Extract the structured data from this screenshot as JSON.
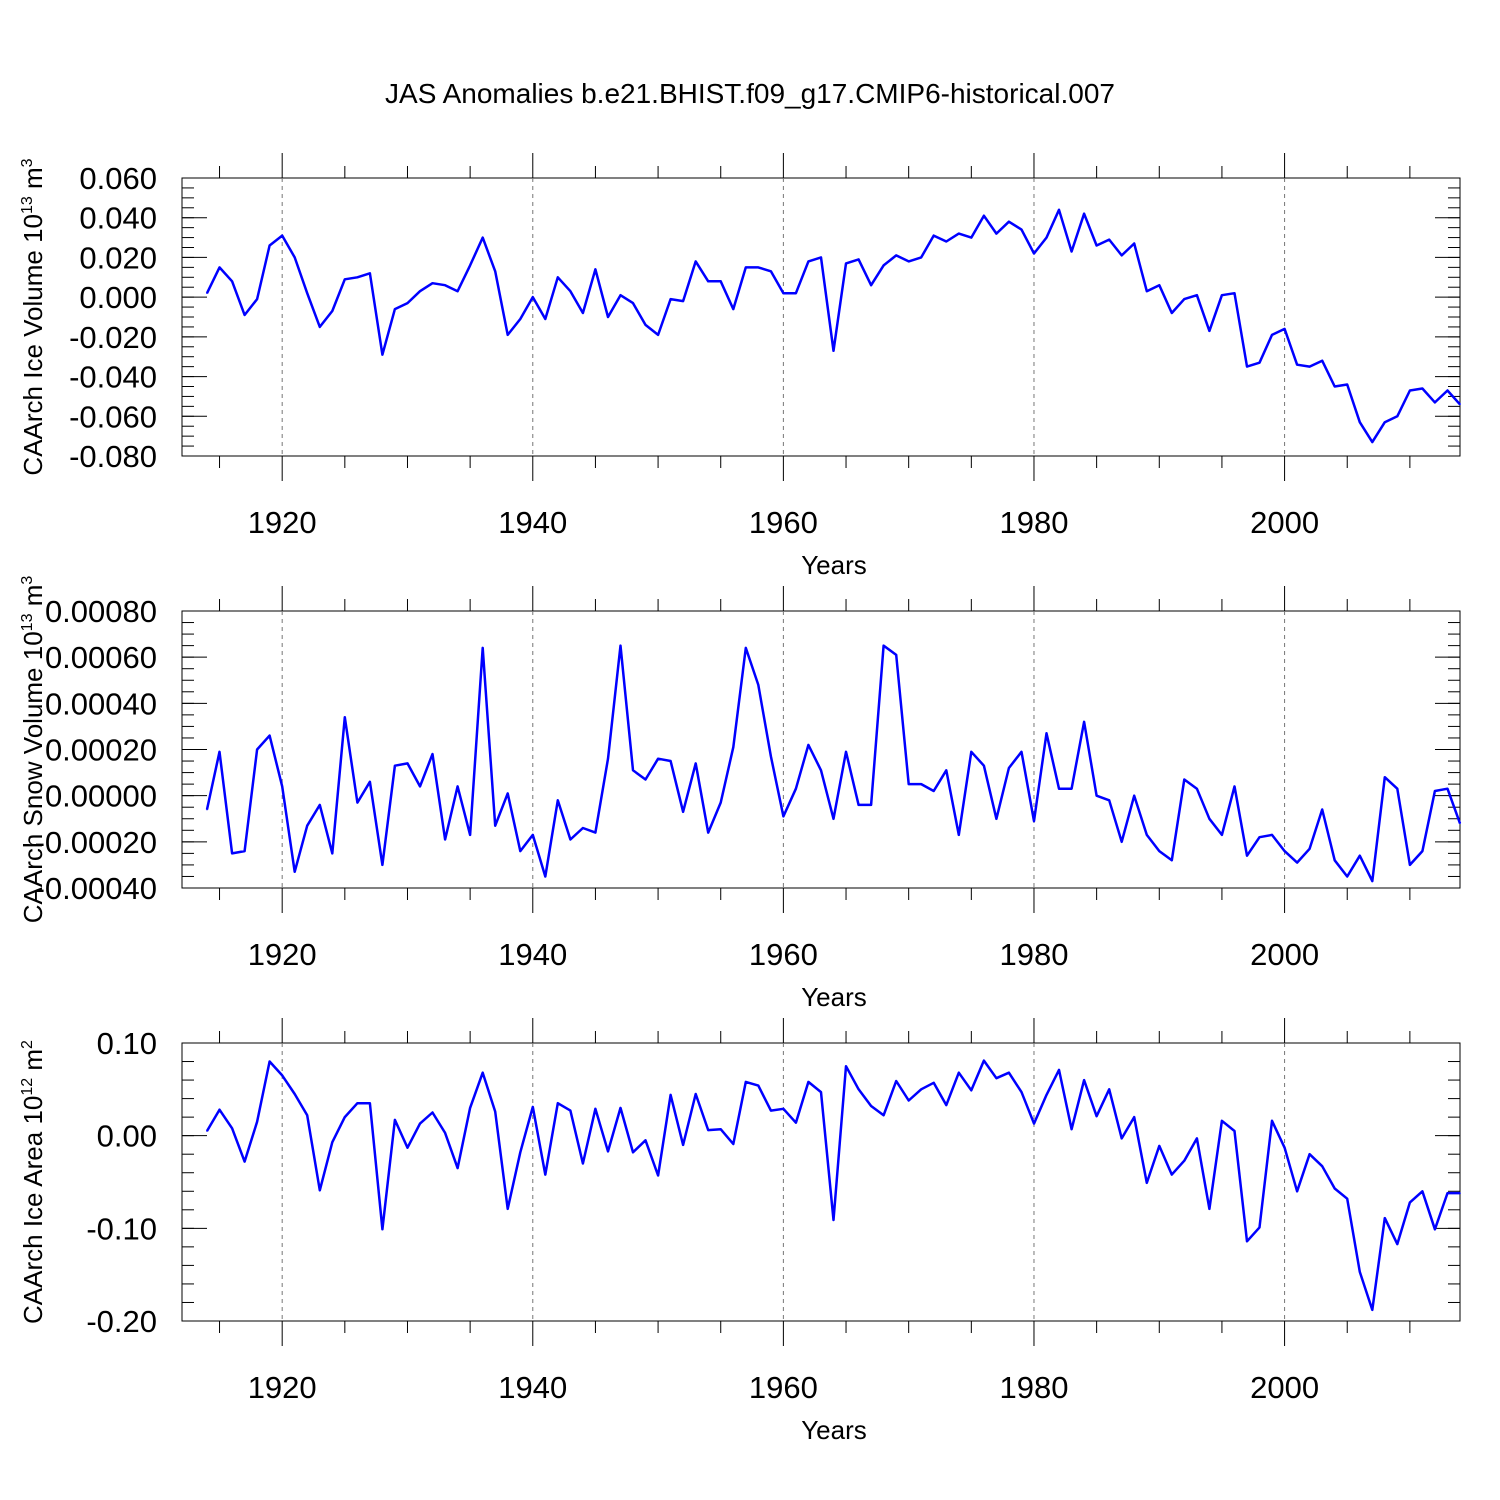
{
  "title": "JAS Anomalies b.e21.BHIST.f09_g17.CMIP6-historical.007",
  "chart_data": [
    {
      "type": "line",
      "xlabel": "Years",
      "ylabel": "CAArch Ice Volume 10",
      "ylabel_exp": "13",
      "ylabel_unit": " m",
      "ylabel_unit_exp": "3",
      "xlim": [
        1914,
        2014
      ],
      "ylim": [
        -0.08,
        0.06
      ],
      "yticks": [
        -0.08,
        -0.06,
        -0.04,
        -0.02,
        0.0,
        0.02,
        0.04,
        0.06
      ],
      "ytick_labels": [
        "-0.080",
        "-0.060",
        "-0.040",
        "-0.020",
        "0.000",
        "0.020",
        "0.040",
        "0.060"
      ],
      "yminor": 0.005,
      "xticks": [
        1920,
        1940,
        1960,
        1980,
        2000
      ],
      "xtick_labels": [
        "1920",
        "1940",
        "1960",
        "1980",
        "2000"
      ],
      "x_start": 1914,
      "color": "#0000ff",
      "values": [
        0.002,
        0.015,
        0.008,
        -0.009,
        -0.001,
        0.026,
        0.031,
        0.02,
        0.002,
        -0.015,
        -0.007,
        0.009,
        0.01,
        0.012,
        -0.029,
        -0.006,
        -0.003,
        0.003,
        0.007,
        0.006,
        0.003,
        0.016,
        0.03,
        0.013,
        -0.019,
        -0.011,
        0.0,
        -0.011,
        0.01,
        0.003,
        -0.008,
        0.014,
        -0.01,
        0.001,
        -0.003,
        -0.014,
        -0.019,
        -0.001,
        -0.002,
        0.018,
        0.008,
        0.008,
        -0.006,
        0.015,
        0.015,
        0.013,
        0.002,
        0.002,
        0.018,
        0.02,
        -0.027,
        0.017,
        0.019,
        0.006,
        0.016,
        0.021,
        0.018,
        0.02,
        0.031,
        0.028,
        0.032,
        0.03,
        0.041,
        0.032,
        0.038,
        0.034,
        0.022,
        0.03,
        0.044,
        0.023,
        0.042,
        0.026,
        0.029,
        0.021,
        0.027,
        0.003,
        0.006,
        -0.008,
        -0.001,
        0.001,
        -0.017,
        0.001,
        0.002,
        -0.035,
        -0.033,
        -0.019,
        -0.016,
        -0.034,
        -0.035,
        -0.032,
        -0.045,
        -0.044,
        -0.063,
        -0.073,
        -0.063,
        -0.06,
        -0.047,
        -0.046,
        -0.053,
        -0.047,
        -0.054
      ]
    },
    {
      "type": "line",
      "xlabel": "Years",
      "ylabel": "CAArch Snow Volume 10",
      "ylabel_exp": "13",
      "ylabel_unit": " m",
      "ylabel_unit_exp": "3",
      "xlim": [
        1914,
        2014
      ],
      "ylim": [
        -0.0004,
        0.0008
      ],
      "yticks": [
        -0.0004,
        -0.0002,
        0.0,
        0.0002,
        0.0004,
        0.0006,
        0.0008
      ],
      "ytick_labels": [
        "-0.00040",
        "-0.00020",
        "0.00000",
        "0.00020",
        "0.00040",
        "0.00060",
        "0.00080"
      ],
      "yminor": 5e-05,
      "xticks": [
        1920,
        1940,
        1960,
        1980,
        2000
      ],
      "xtick_labels": [
        "1920",
        "1940",
        "1960",
        "1980",
        "2000"
      ],
      "x_start": 1914,
      "color": "#0000ff",
      "values": [
        -6e-05,
        0.00019,
        -0.00025,
        -0.00024,
        0.0002,
        0.00026,
        4e-05,
        -0.00033,
        -0.00013,
        -4e-05,
        -0.00025,
        0.00034,
        -3e-05,
        6e-05,
        -0.0003,
        0.00013,
        0.00014,
        4e-05,
        0.00018,
        -0.00019,
        4e-05,
        -0.00017,
        0.00064,
        -0.00013,
        1e-05,
        -0.00024,
        -0.00017,
        -0.00035,
        -2e-05,
        -0.00019,
        -0.00014,
        -0.00016,
        0.00016,
        0.00065,
        0.00011,
        7e-05,
        0.00016,
        0.00015,
        -7e-05,
        0.00014,
        -0.00016,
        -3e-05,
        0.00021,
        0.00064,
        0.00048,
        0.00017,
        -9e-05,
        3e-05,
        0.00022,
        0.00011,
        -0.0001,
        0.00019,
        -4e-05,
        -4e-05,
        0.00065,
        0.00061,
        5e-05,
        5e-05,
        2e-05,
        0.00011,
        -0.00017,
        0.00019,
        0.00013,
        -0.0001,
        0.00012,
        0.00019,
        -0.00011,
        0.00027,
        3e-05,
        3e-05,
        0.00032,
        0.0,
        -2e-05,
        -0.0002,
        0.0,
        -0.00017,
        -0.00024,
        -0.00028,
        7e-05,
        3e-05,
        -0.0001,
        -0.00017,
        4e-05,
        -0.00026,
        -0.00018,
        -0.00017,
        -0.00024,
        -0.00029,
        -0.00023,
        -6e-05,
        -0.00028,
        -0.00035,
        -0.00026,
        -0.00037,
        8e-05,
        3e-05,
        -0.0003,
        -0.00024,
        2e-05,
        3e-05,
        -0.00012
      ]
    },
    {
      "type": "line",
      "xlabel": "Years",
      "ylabel": "CAArch Ice Area 10",
      "ylabel_exp": "12",
      "ylabel_unit": " m",
      "ylabel_unit_exp": "2",
      "xlim": [
        1914,
        2014
      ],
      "ylim": [
        -0.2,
        0.1
      ],
      "yticks": [
        -0.2,
        -0.1,
        0.0,
        0.1
      ],
      "ytick_labels": [
        "-0.20",
        "-0.10",
        "0.00",
        "0.10"
      ],
      "yminor": 0.02,
      "xticks": [
        1920,
        1940,
        1960,
        1980,
        2000
      ],
      "xtick_labels": [
        "1920",
        "1940",
        "1960",
        "1980",
        "2000"
      ],
      "x_start": 1914,
      "color": "#0000ff",
      "values": [
        0.005,
        0.028,
        0.008,
        -0.028,
        0.015,
        0.08,
        0.065,
        0.045,
        0.022,
        -0.059,
        -0.007,
        0.02,
        0.035,
        0.035,
        -0.101,
        0.017,
        -0.013,
        0.013,
        0.025,
        0.003,
        -0.035,
        0.03,
        0.068,
        0.026,
        -0.079,
        -0.018,
        0.031,
        -0.042,
        0.035,
        0.027,
        -0.03,
        0.029,
        -0.017,
        0.03,
        -0.018,
        -0.005,
        -0.043,
        0.044,
        -0.01,
        0.045,
        0.006,
        0.007,
        -0.009,
        0.058,
        0.054,
        0.027,
        0.029,
        0.014,
        0.058,
        0.047,
        -0.091,
        0.075,
        0.05,
        0.032,
        0.022,
        0.059,
        0.038,
        0.05,
        0.057,
        0.033,
        0.068,
        0.049,
        0.081,
        0.062,
        0.068,
        0.047,
        0.013,
        0.044,
        0.071,
        0.007,
        0.06,
        0.021,
        0.05,
        -0.003,
        0.02,
        -0.051,
        -0.011,
        -0.042,
        -0.027,
        -0.003,
        -0.079,
        0.016,
        0.005,
        -0.114,
        -0.099,
        0.016,
        -0.013,
        -0.06,
        -0.02,
        -0.033,
        -0.057,
        -0.068,
        -0.147,
        -0.188,
        -0.089,
        -0.117,
        -0.072,
        -0.06,
        -0.101,
        -0.062,
        -0.062
      ]
    }
  ]
}
